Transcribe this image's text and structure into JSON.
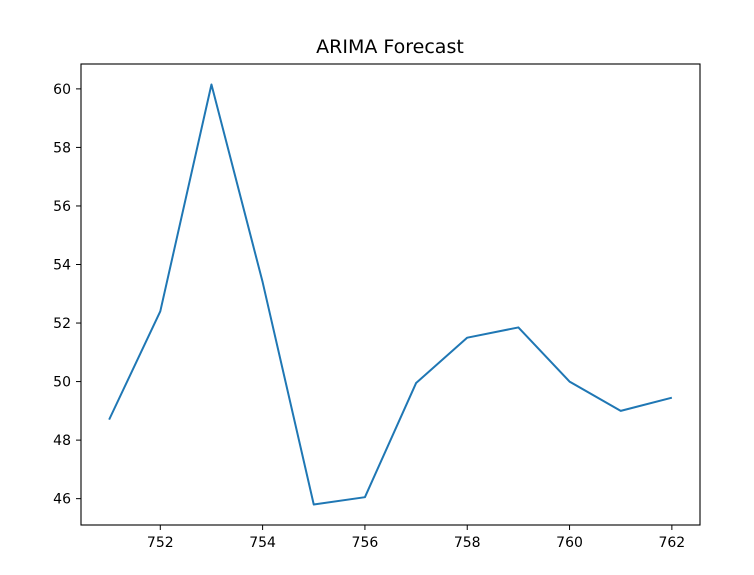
{
  "chart_data": {
    "type": "line",
    "title": "ARIMA Forecast",
    "xlabel": "",
    "ylabel": "",
    "xlim": [
      750.45,
      762.55
    ],
    "ylim": [
      45.1,
      60.85
    ],
    "x_ticks": [
      752,
      754,
      756,
      758,
      760,
      762
    ],
    "y_ticks": [
      46,
      48,
      50,
      52,
      54,
      56,
      58,
      60
    ],
    "grid": false,
    "legend": "none",
    "series": [
      {
        "color": "#1f77b4",
        "x": [
          751,
          752,
          753,
          754,
          755,
          756,
          757,
          758,
          759,
          760,
          761,
          762
        ],
        "y": [
          48.7,
          52.4,
          60.15,
          53.4,
          45.8,
          46.05,
          49.95,
          51.5,
          51.85,
          50.0,
          49.0,
          49.45
        ]
      }
    ]
  }
}
